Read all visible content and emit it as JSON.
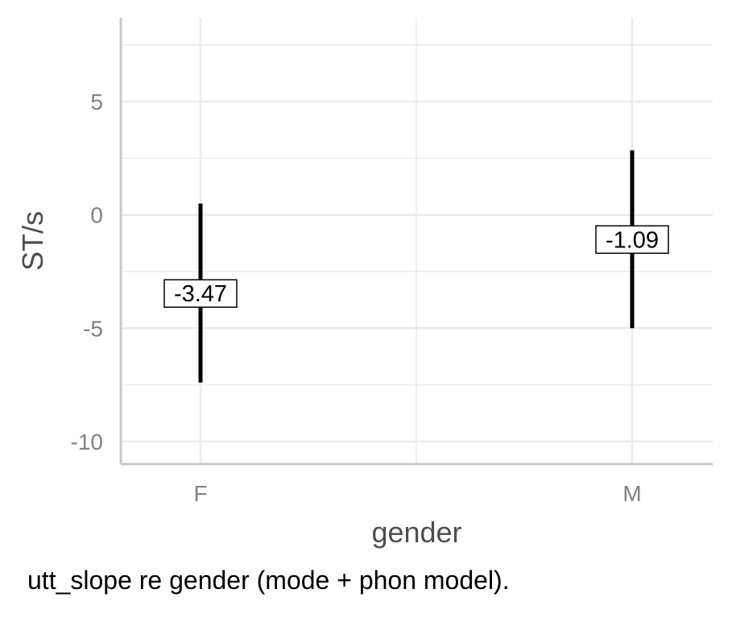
{
  "chart_data": {
    "type": "errorbar",
    "xlabel": "gender",
    "ylabel": "ST/s",
    "categories": [
      "F",
      "M"
    ],
    "points": [
      {
        "category": "F",
        "estimate": -3.47,
        "lower": -7.4,
        "upper": 0.5,
        "label": "-3.47"
      },
      {
        "category": "M",
        "estimate": -1.09,
        "lower": -5.0,
        "upper": 2.85,
        "label": "-1.09"
      }
    ],
    "ylim": [
      -11,
      8.7
    ],
    "yticks": [
      -10,
      -5,
      0,
      5
    ],
    "ytick_labels": [
      "-10",
      "-5",
      "0",
      "5"
    ],
    "grid": true,
    "colors": {
      "mark": "#000000",
      "grid": "#ebebeb",
      "axis": "#c8c8c8"
    }
  },
  "caption": "utt_slope re gender (mode + phon model)."
}
